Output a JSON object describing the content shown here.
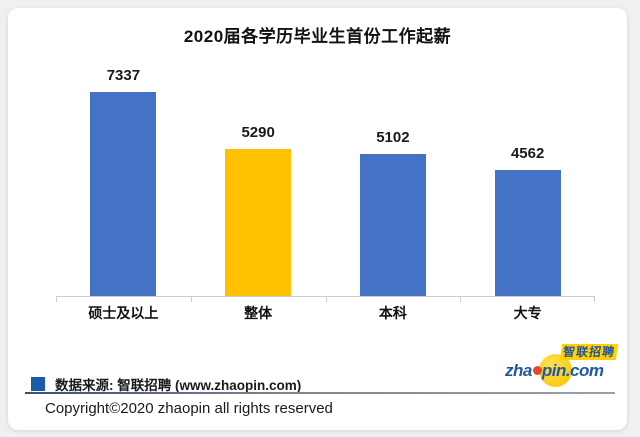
{
  "page": {
    "background_color": "#eef0f2",
    "card_color": "#ffffff"
  },
  "chart_data": {
    "type": "bar",
    "title": "2020届各学历毕业生首份工作起薪",
    "categories": [
      "硕士及以上",
      "整体",
      "本科",
      "大专"
    ],
    "values": [
      7337,
      5290,
      5102,
      4562
    ],
    "bar_colors": [
      "#4472C4",
      "#FFC000",
      "#4472C4",
      "#4472C4"
    ],
    "data_labels": true,
    "ylim": [
      0,
      7500
    ],
    "grid": false,
    "legend_position": "none",
    "axis_color": "#c9cdd1"
  },
  "footer": {
    "legend_color": "#1a5ca8",
    "source_label": "数据来源: 智联招聘 (www.zhaopin.com)",
    "copyright": "Copyright©2020 zhaopin all rights reserved"
  },
  "logo": {
    "cn_text": "智联招聘",
    "en_prefix": "zha",
    "en_suffix": "pin.com",
    "blue": "#2157a7",
    "yellow": "#ffd100",
    "red": "#e8442e"
  }
}
